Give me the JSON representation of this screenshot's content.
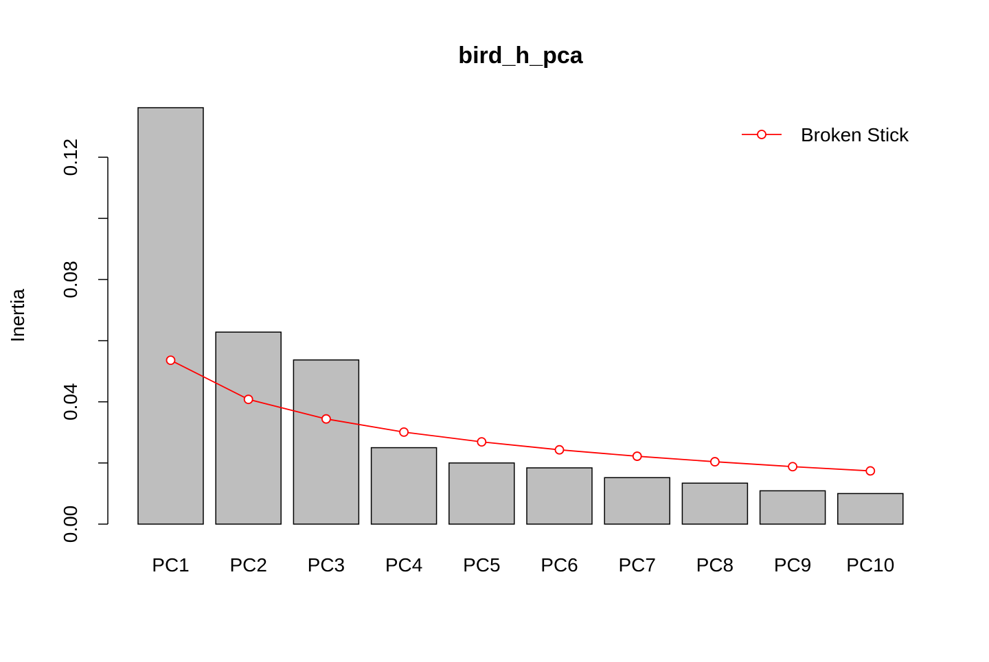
{
  "chart_data": {
    "type": "bar",
    "title": "bird_h_pca",
    "xlabel": "",
    "ylabel": "Inertia",
    "categories": [
      "PC1",
      "PC2",
      "PC3",
      "PC4",
      "PC5",
      "PC6",
      "PC7",
      "PC8",
      "PC9",
      "PC10"
    ],
    "values": [
      0.1362,
      0.0628,
      0.0537,
      0.025,
      0.02,
      0.0184,
      0.0152,
      0.0134,
      0.0109,
      0.01
    ],
    "ylim": [
      0,
      0.1362
    ],
    "yticks": [
      0.0,
      0.04,
      0.08,
      0.12
    ],
    "ytick_labels": [
      "0.00",
      "0.04",
      "0.08",
      "0.12"
    ],
    "bar_color": "#bebebe",
    "series": [
      {
        "name": "Broken Stick",
        "type": "line",
        "color": "#ff0000",
        "marker": "open-circle",
        "values": [
          0.0536,
          0.0408,
          0.0344,
          0.0301,
          0.0269,
          0.0243,
          0.0222,
          0.0204,
          0.0188,
          0.0174
        ]
      }
    ],
    "legend": {
      "position": "top-right",
      "entries": [
        "Broken Stick"
      ]
    },
    "grid": false
  }
}
